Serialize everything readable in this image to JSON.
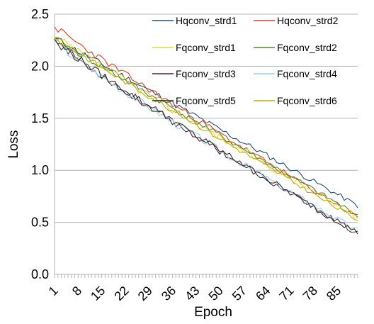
{
  "chart_data": {
    "type": "line",
    "title": "",
    "xlabel": "Epoch",
    "ylabel": "Loss",
    "ylim": [
      0,
      2.5
    ],
    "xlim": [
      1,
      91
    ],
    "yticks": [
      "0.0",
      "0.5",
      "1.0",
      "1.5",
      "2.0",
      "2.5"
    ],
    "xticks": [
      "1",
      "8",
      "15",
      "22",
      "29",
      "36",
      "43",
      "50",
      "57",
      "64",
      "71",
      "78",
      "85"
    ],
    "grid": "horizontal",
    "legend_position": "top-right",
    "series": [
      {
        "name": "Hqconv_strd1",
        "color": "#1f4e79",
        "start": 2.27,
        "end": 0.66,
        "shape": 1.0,
        "noise": 0.03,
        "seed": 11,
        "y": []
      },
      {
        "name": "Hqconv_strd2",
        "color": "#e0401f",
        "start": 2.38,
        "end": 0.55,
        "shape": 1.15,
        "noise": 0.03,
        "seed": 23,
        "y": []
      },
      {
        "name": "Fqconv_strd1",
        "color": "#f2d13a",
        "start": 2.28,
        "end": 0.55,
        "shape": 1.1,
        "noise": 0.04,
        "seed": 37,
        "y": []
      },
      {
        "name": "Fqconv_strd2",
        "color": "#4e8a2c",
        "start": 2.27,
        "end": 0.57,
        "shape": 1.05,
        "noise": 0.03,
        "seed": 41,
        "y": []
      },
      {
        "name": "Fqconv_strd3",
        "color": "#5a1a4a",
        "start": 2.26,
        "end": 0.39,
        "shape": 1.3,
        "noise": 0.035,
        "seed": 53,
        "y": []
      },
      {
        "name": "Fqconv_strd4",
        "color": "#8fd3ef",
        "start": 2.25,
        "end": 0.42,
        "shape": 1.35,
        "noise": 0.035,
        "seed": 67,
        "y": []
      },
      {
        "name": "Fqconv_strd5",
        "color": "#2b2b12",
        "start": 2.26,
        "end": 0.4,
        "shape": 1.3,
        "noise": 0.035,
        "seed": 79,
        "y": []
      },
      {
        "name": "Fqconv_strd6",
        "color": "#b9b000",
        "start": 2.27,
        "end": 0.52,
        "shape": 1.05,
        "noise": 0.025,
        "seed": 83,
        "y": []
      }
    ]
  }
}
